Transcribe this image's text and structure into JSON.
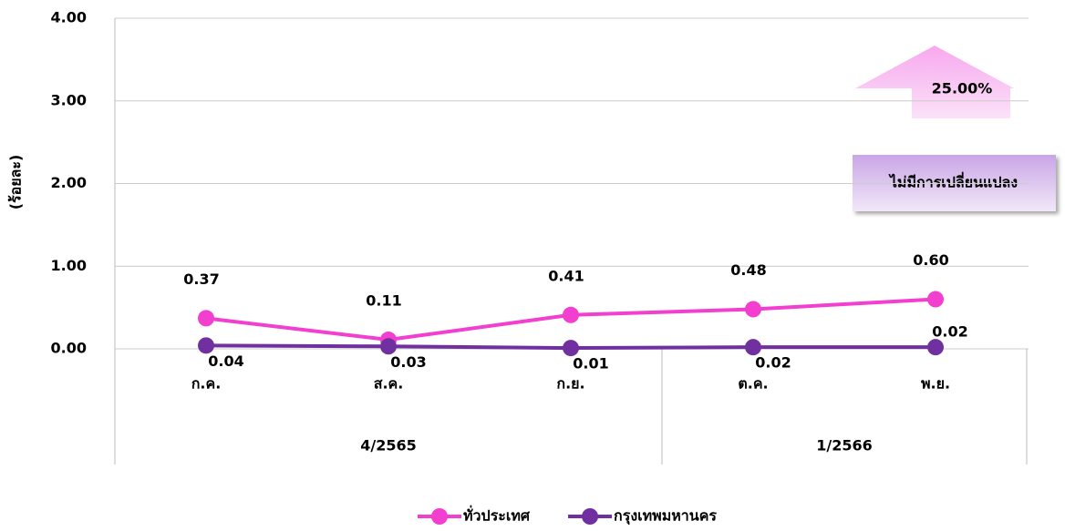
{
  "chart_data": {
    "type": "line",
    "y_label": "(ร้อยละ)",
    "categories": [
      "ก.ค.",
      "ส.ค.",
      "ก.ย.",
      "ต.ค.",
      "พ.ย."
    ],
    "groups": [
      {
        "label": "4/2565",
        "span": 3
      },
      {
        "label": "1/2566",
        "span": 2
      }
    ],
    "series": [
      {
        "name": "ทั่วประเทศ",
        "color": "#f23fd0",
        "values": [
          0.37,
          0.11,
          0.41,
          0.48,
          0.6
        ],
        "value_labels": [
          "0.37",
          "0.11",
          "0.41",
          "0.48",
          "0.60"
        ]
      },
      {
        "name": "กรุงเทพมหานคร",
        "color": "#7030a0",
        "values": [
          0.04,
          0.03,
          0.01,
          0.02,
          0.02
        ],
        "value_labels": [
          "0.04",
          "0.03",
          "0.01",
          "0.02",
          "0.02"
        ]
      }
    ],
    "ylim": [
      0,
      4
    ],
    "yticks": [
      {
        "value": 0,
        "label": "0.00"
      },
      {
        "value": 1,
        "label": "1.00"
      },
      {
        "value": 2,
        "label": "2.00"
      },
      {
        "value": 3,
        "label": "3.00"
      },
      {
        "value": 4,
        "label": "4.00"
      }
    ],
    "grid": true,
    "annotations": [
      "25.00%",
      "ไม่มีการเปลี่ยนแปลง"
    ]
  }
}
